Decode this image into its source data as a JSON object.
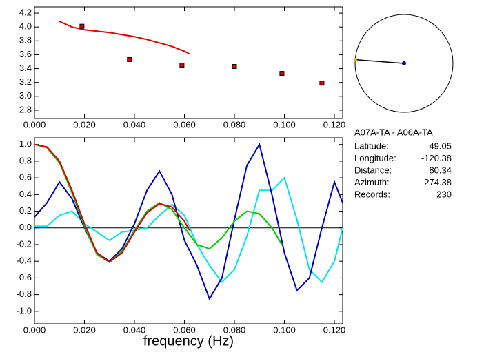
{
  "chart_data": [
    {
      "type": "scatter",
      "xlim": [
        0,
        0.1233
      ],
      "ylim": [
        2.68,
        4.29
      ],
      "xticks": [
        {
          "value": 0,
          "label": "0.000"
        },
        {
          "value": 0.02,
          "label": "0.020"
        },
        {
          "value": 0.04,
          "label": "0.040"
        },
        {
          "value": 0.06,
          "label": "0.060"
        },
        {
          "value": 0.08,
          "label": "0.080"
        },
        {
          "value": 0.1,
          "label": "0.100"
        },
        {
          "value": 0.12,
          "label": "0.120"
        }
      ],
      "yticks": [
        {
          "value": 2.8,
          "label": "2.8"
        },
        {
          "value": 3.0,
          "label": "3.0"
        },
        {
          "value": 3.2,
          "label": "3.2"
        },
        {
          "value": 3.4,
          "label": "3.4"
        },
        {
          "value": 3.6,
          "label": "3.6"
        },
        {
          "value": 3.8,
          "label": "3.8"
        },
        {
          "value": 4.0,
          "label": "4.0"
        },
        {
          "value": 4.2,
          "label": "4.2"
        }
      ],
      "series": [
        {
          "style": "line",
          "color": "#e00000",
          "x": [
            0.01,
            0.015,
            0.02,
            0.025,
            0.03,
            0.035,
            0.04,
            0.045,
            0.05,
            0.055,
            0.06,
            0.062
          ],
          "values": [
            4.08,
            4.0,
            3.96,
            3.94,
            3.92,
            3.89,
            3.86,
            3.82,
            3.77,
            3.72,
            3.65,
            3.61
          ]
        },
        {
          "style": "markers",
          "color": "#e00000",
          "x": [
            0.019,
            0.038,
            0.059,
            0.08,
            0.099,
            0.115
          ],
          "values": [
            4.01,
            3.53,
            3.45,
            3.43,
            3.33,
            3.19
          ]
        }
      ]
    },
    {
      "type": "line",
      "xlabel": "frequency (Hz)",
      "xlim": [
        0,
        0.1233
      ],
      "ylim": [
        -1.15,
        1.08
      ],
      "hline": 0,
      "xticks": [
        {
          "value": 0,
          "label": "0.000"
        },
        {
          "value": 0.02,
          "label": "0.020"
        },
        {
          "value": 0.04,
          "label": "0.040"
        },
        {
          "value": 0.06,
          "label": "0.060"
        },
        {
          "value": 0.08,
          "label": "0.080"
        },
        {
          "value": 0.1,
          "label": "0.100"
        },
        {
          "value": 0.12,
          "label": "0.120"
        }
      ],
      "yticks": [
        {
          "value": -1.0,
          "label": "-1.0"
        },
        {
          "value": -0.8,
          "label": "-0.8"
        },
        {
          "value": -0.6,
          "label": "-0.6"
        },
        {
          "value": -0.4,
          "label": "-0.4"
        },
        {
          "value": -0.2,
          "label": "-0.2"
        },
        {
          "value": 0,
          "label": "0.0"
        },
        {
          "value": 0.2,
          "label": "0.2"
        },
        {
          "value": 0.4,
          "label": "0.4"
        },
        {
          "value": 0.6,
          "label": "0.6"
        },
        {
          "value": 0.8,
          "label": "0.8"
        },
        {
          "value": 1.0,
          "label": "1.0"
        }
      ],
      "series": [
        {
          "color": "#00e5e5",
          "x": [
            0,
            0.005,
            0.01,
            0.015,
            0.02,
            0.025,
            0.03,
            0.035,
            0.04,
            0.045,
            0.05,
            0.055,
            0.06,
            0.065,
            0.07,
            0.075,
            0.08,
            0.085,
            0.09,
            0.095,
            0.1,
            0.105,
            0.11,
            0.115,
            0.12,
            0.1233
          ],
          "values": [
            0.02,
            0.02,
            0.15,
            0.2,
            0.05,
            -0.05,
            -0.15,
            -0.05,
            -0.03,
            0.0,
            0.15,
            0.28,
            0.15,
            -0.2,
            -0.45,
            -0.65,
            -0.5,
            -0.1,
            0.45,
            0.45,
            0.6,
            0.1,
            -0.5,
            -0.65,
            -0.4,
            0.0
          ]
        },
        {
          "color": "#0000c0",
          "x": [
            0,
            0.005,
            0.01,
            0.015,
            0.02,
            0.025,
            0.03,
            0.035,
            0.04,
            0.045,
            0.05,
            0.055,
            0.06,
            0.065,
            0.07,
            0.075,
            0.08,
            0.085,
            0.09,
            0.095,
            0.1,
            0.105,
            0.11,
            0.115,
            0.12,
            0.1233
          ],
          "values": [
            0.13,
            0.3,
            0.55,
            0.35,
            0.0,
            -0.3,
            -0.4,
            -0.25,
            0.05,
            0.45,
            0.68,
            0.4,
            -0.15,
            -0.45,
            -0.85,
            -0.6,
            0.1,
            0.75,
            1.0,
            0.4,
            -0.3,
            -0.75,
            -0.6,
            0.0,
            0.55,
            0.3
          ]
        },
        {
          "color": "#00cc00",
          "x": [
            0,
            0.005,
            0.01,
            0.015,
            0.02,
            0.025,
            0.03,
            0.035,
            0.04,
            0.045,
            0.05,
            0.055,
            0.06,
            0.065,
            0.07,
            0.075,
            0.08,
            0.085,
            0.09,
            0.095,
            0.099
          ],
          "values": [
            1.0,
            0.96,
            0.78,
            0.42,
            0.02,
            -0.32,
            -0.41,
            -0.28,
            -0.03,
            0.2,
            0.3,
            0.22,
            0.0,
            -0.2,
            -0.25,
            -0.12,
            0.08,
            0.2,
            0.17,
            0.0,
            -0.2
          ]
        },
        {
          "color": "#e00000",
          "x": [
            0,
            0.005,
            0.01,
            0.015,
            0.02,
            0.025,
            0.03,
            0.035,
            0.04,
            0.045,
            0.05,
            0.055,
            0.06,
            0.062
          ],
          "values": [
            1.0,
            0.97,
            0.8,
            0.45,
            0.05,
            -0.3,
            -0.41,
            -0.3,
            -0.05,
            0.18,
            0.29,
            0.25,
            0.08,
            -0.03
          ]
        }
      ]
    }
  ],
  "station_pair": "A07A-TA  -  A06A-TA",
  "info": [
    {
      "label": "Latitude:",
      "value": 49.05
    },
    {
      "label": "Longitude:",
      "value": -120.38
    },
    {
      "label": "Distance:",
      "value": 80.34
    },
    {
      "label": "Azimuth:",
      "value": 274.38
    },
    {
      "label": "Records:",
      "value": 230
    }
  ]
}
